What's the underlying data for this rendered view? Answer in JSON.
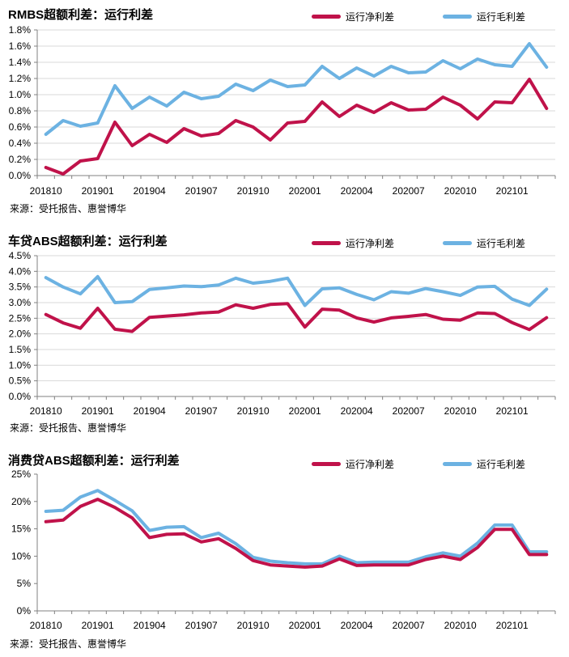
{
  "colors": {
    "net": "#c0124a",
    "gross": "#6cb2e2",
    "grid": "#d9d9d9",
    "axis": "#808080"
  },
  "legend": {
    "net_label": "运行净利差",
    "gross_label": "运行毛利差"
  },
  "source_text": "来源：受托报告、惠誉博华",
  "chart_data": [
    {
      "type": "line",
      "title": "RMBS超额利差：运行利差",
      "x": [
        "201810",
        "201811",
        "201812",
        "201901",
        "201902",
        "201903",
        "201904",
        "201905",
        "201906",
        "201907",
        "201908",
        "201909",
        "201910",
        "201911",
        "201912",
        "202001",
        "202002",
        "202003",
        "202004",
        "202005",
        "202006",
        "202007",
        "202008",
        "202009",
        "202010",
        "202011",
        "202012",
        "202101",
        "202102",
        "202103"
      ],
      "x_tick_labels": [
        "201810",
        "201901",
        "201904",
        "201907",
        "201910",
        "202001",
        "202004",
        "202007",
        "202010",
        "202101"
      ],
      "y_tick_labels": [
        "0.0%",
        "0.2%",
        "0.4%",
        "0.6%",
        "0.8%",
        "1.0%",
        "1.2%",
        "1.4%",
        "1.6%",
        "1.8%"
      ],
      "ylim": [
        0,
        1.8
      ],
      "y_unit": "%",
      "grid": true,
      "legend_position": "top",
      "series": [
        {
          "name": "运行净利差",
          "color": "net",
          "values": [
            0.1,
            0.02,
            0.18,
            0.21,
            0.66,
            0.37,
            0.51,
            0.41,
            0.58,
            0.49,
            0.52,
            0.68,
            0.6,
            0.44,
            0.65,
            0.67,
            0.91,
            0.73,
            0.87,
            0.78,
            0.9,
            0.81,
            0.82,
            0.97,
            0.87,
            0.7,
            0.91,
            0.9,
            1.19,
            0.83
          ]
        },
        {
          "name": "运行毛利差",
          "color": "gross",
          "values": [
            0.51,
            0.68,
            0.61,
            0.65,
            1.11,
            0.83,
            0.97,
            0.86,
            1.03,
            0.95,
            0.98,
            1.13,
            1.05,
            1.18,
            1.1,
            1.12,
            1.35,
            1.2,
            1.33,
            1.23,
            1.35,
            1.27,
            1.28,
            1.42,
            1.32,
            1.44,
            1.37,
            1.35,
            1.63,
            1.34
          ]
        }
      ]
    },
    {
      "type": "line",
      "title": "车贷ABS超额利差：运行利差",
      "x": [
        "201810",
        "201811",
        "201812",
        "201901",
        "201902",
        "201903",
        "201904",
        "201905",
        "201906",
        "201907",
        "201908",
        "201909",
        "201910",
        "201911",
        "201912",
        "202001",
        "202002",
        "202003",
        "202004",
        "202005",
        "202006",
        "202007",
        "202008",
        "202009",
        "202010",
        "202011",
        "202012",
        "202101",
        "202102",
        "202103"
      ],
      "x_tick_labels": [
        "201810",
        "201901",
        "201904",
        "201907",
        "201910",
        "202001",
        "202004",
        "202007",
        "202010",
        "202101"
      ],
      "y_tick_labels": [
        "0.0%",
        "0.5%",
        "1.0%",
        "1.5%",
        "2.0%",
        "2.5%",
        "3.0%",
        "3.5%",
        "4.0%",
        "4.5%"
      ],
      "ylim": [
        0,
        4.5
      ],
      "y_unit": "%",
      "grid": true,
      "legend_position": "top",
      "series": [
        {
          "name": "运行净利差",
          "color": "net",
          "values": [
            2.62,
            2.35,
            2.18,
            2.82,
            2.15,
            2.08,
            2.53,
            2.57,
            2.61,
            2.67,
            2.7,
            2.93,
            2.82,
            2.94,
            2.97,
            2.22,
            2.79,
            2.76,
            2.51,
            2.38,
            2.51,
            2.56,
            2.62,
            2.47,
            2.44,
            2.67,
            2.65,
            2.36,
            2.14,
            2.52
          ]
        },
        {
          "name": "运行毛利差",
          "color": "gross",
          "values": [
            3.8,
            3.5,
            3.28,
            3.83,
            3.0,
            3.03,
            3.42,
            3.47,
            3.53,
            3.51,
            3.56,
            3.78,
            3.62,
            3.68,
            3.78,
            2.91,
            3.44,
            3.47,
            3.26,
            3.09,
            3.35,
            3.3,
            3.45,
            3.35,
            3.23,
            3.5,
            3.52,
            3.11,
            2.91,
            3.43
          ]
        }
      ]
    },
    {
      "type": "line",
      "title": "消费贷ABS超额利差：运行利差",
      "x": [
        "201810",
        "201811",
        "201812",
        "201901",
        "201902",
        "201903",
        "201904",
        "201905",
        "201906",
        "201907",
        "201908",
        "201909",
        "201910",
        "201911",
        "201912",
        "202001",
        "202002",
        "202003",
        "202004",
        "202005",
        "202006",
        "202007",
        "202008",
        "202009",
        "202010",
        "202011",
        "202012",
        "202101",
        "202102",
        "202103"
      ],
      "x_tick_labels": [
        "201810",
        "201901",
        "201904",
        "201907",
        "201910",
        "202001",
        "202004",
        "202007",
        "202010",
        "202101"
      ],
      "y_tick_labels": [
        "0%",
        "5%",
        "10%",
        "15%",
        "20%",
        "25%"
      ],
      "ylim": [
        0,
        25
      ],
      "y_unit": "%",
      "grid": false,
      "legend_position": "top",
      "series": [
        {
          "name": "运行净利差",
          "color": "net",
          "values": [
            16.3,
            16.6,
            19.1,
            20.4,
            18.9,
            17.0,
            13.4,
            14.0,
            14.1,
            12.6,
            13.2,
            11.4,
            9.2,
            8.4,
            8.2,
            8.0,
            8.2,
            9.5,
            8.3,
            8.4,
            8.4,
            8.4,
            9.4,
            10.0,
            9.4,
            11.6,
            14.9,
            14.9,
            10.3,
            10.3
          ]
        },
        {
          "name": "运行毛利差",
          "color": "gross",
          "values": [
            18.2,
            18.4,
            20.8,
            22.0,
            20.2,
            18.3,
            14.7,
            15.3,
            15.4,
            13.4,
            14.2,
            12.3,
            9.8,
            9.1,
            8.8,
            8.6,
            8.6,
            10.0,
            8.8,
            8.9,
            8.9,
            8.9,
            9.9,
            10.6,
            10.0,
            12.4,
            15.7,
            15.7,
            10.8,
            10.8
          ]
        }
      ]
    }
  ]
}
